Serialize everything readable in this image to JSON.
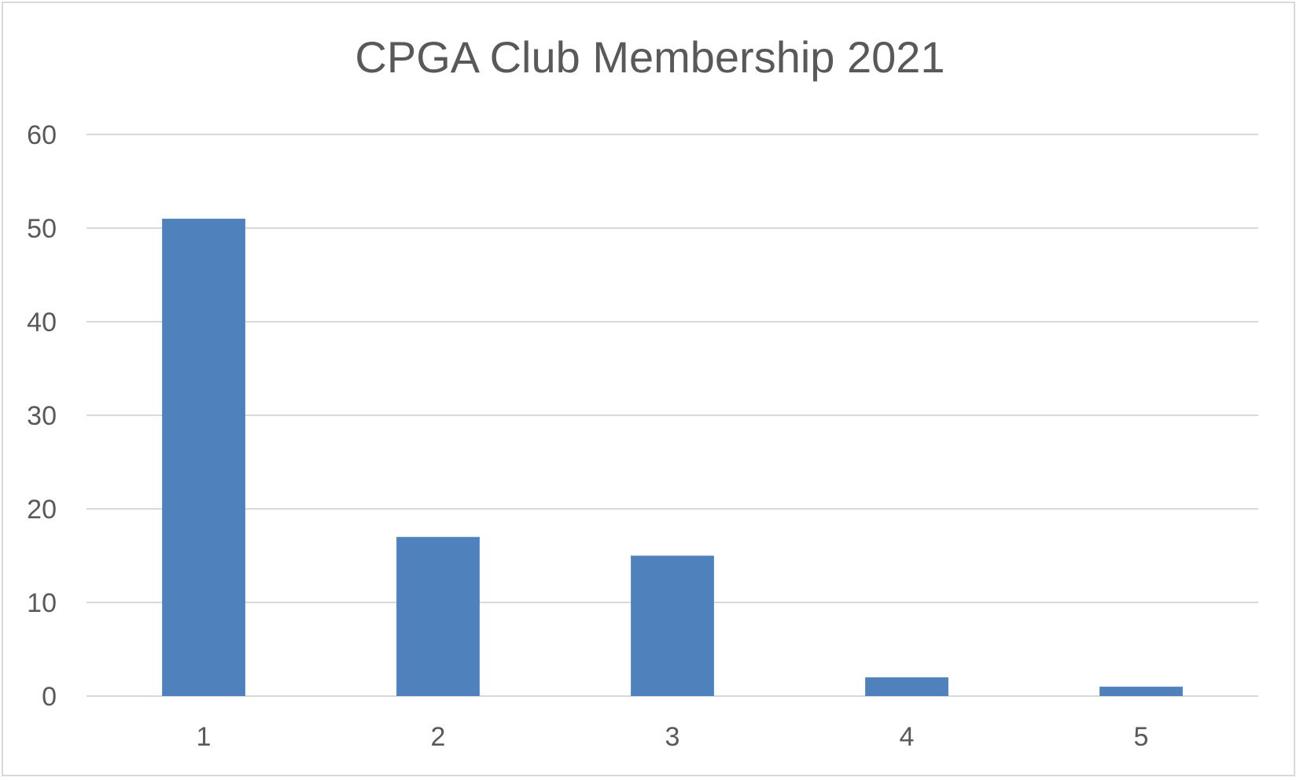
{
  "chart_data": {
    "type": "bar",
    "title": "CPGA Club Membership 2021",
    "categories": [
      "1",
      "2",
      "3",
      "4",
      "5"
    ],
    "values": [
      51,
      17,
      15,
      2,
      1
    ],
    "xlabel": "",
    "ylabel": "",
    "ylim": [
      0,
      60
    ],
    "yticks": [
      "0",
      "10",
      "20",
      "30",
      "40",
      "50",
      "60"
    ],
    "grid": true,
    "legend": "none",
    "colors": {
      "bar": "#4f81bd",
      "grid": "#d9d9d9",
      "text": "#595959",
      "border": "#d9d9d9"
    }
  }
}
